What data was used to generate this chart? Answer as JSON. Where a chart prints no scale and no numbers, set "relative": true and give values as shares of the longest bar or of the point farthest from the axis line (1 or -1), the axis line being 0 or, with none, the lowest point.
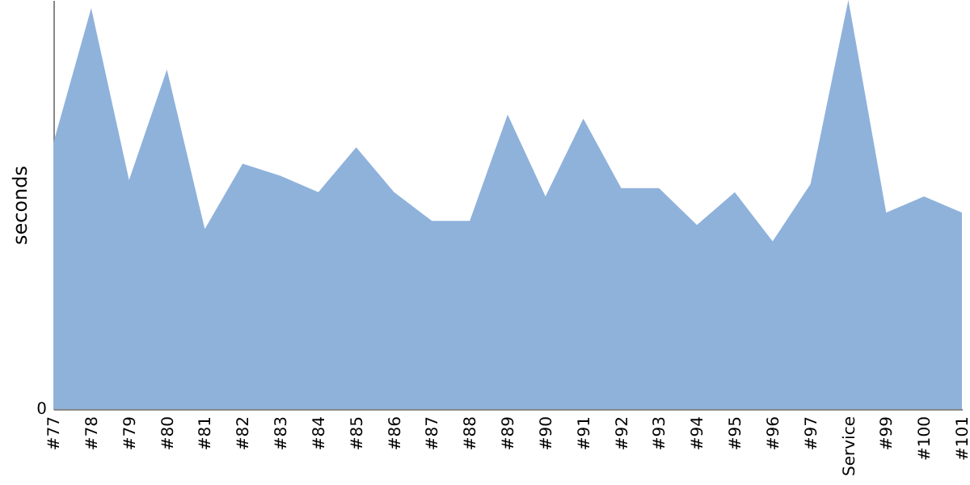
{
  "chart_data": {
    "type": "area",
    "ylabel": "seconds",
    "relative": true,
    "categories": [
      "#77",
      "#78",
      "#79",
      "#80",
      "#81",
      "#82",
      "#83",
      "#84",
      "#85",
      "#86",
      "#87",
      "#88",
      "#89",
      "#90",
      "#91",
      "#92",
      "#93",
      "#94",
      "#95",
      "#96",
      "#97",
      "Service",
      "#99",
      "#100",
      "#101"
    ],
    "series": [
      {
        "color": "#8fb2db",
        "values": [
          0.65,
          0.98,
          0.56,
          0.83,
          0.44,
          0.6,
          0.57,
          0.53,
          0.64,
          0.53,
          0.46,
          0.46,
          0.72,
          0.52,
          0.71,
          0.54,
          0.54,
          0.45,
          0.53,
          0.41,
          0.55,
          1,
          0.48,
          0.52,
          0.48
        ]
      }
    ],
    "annotations": [
      "0"
    ]
  }
}
